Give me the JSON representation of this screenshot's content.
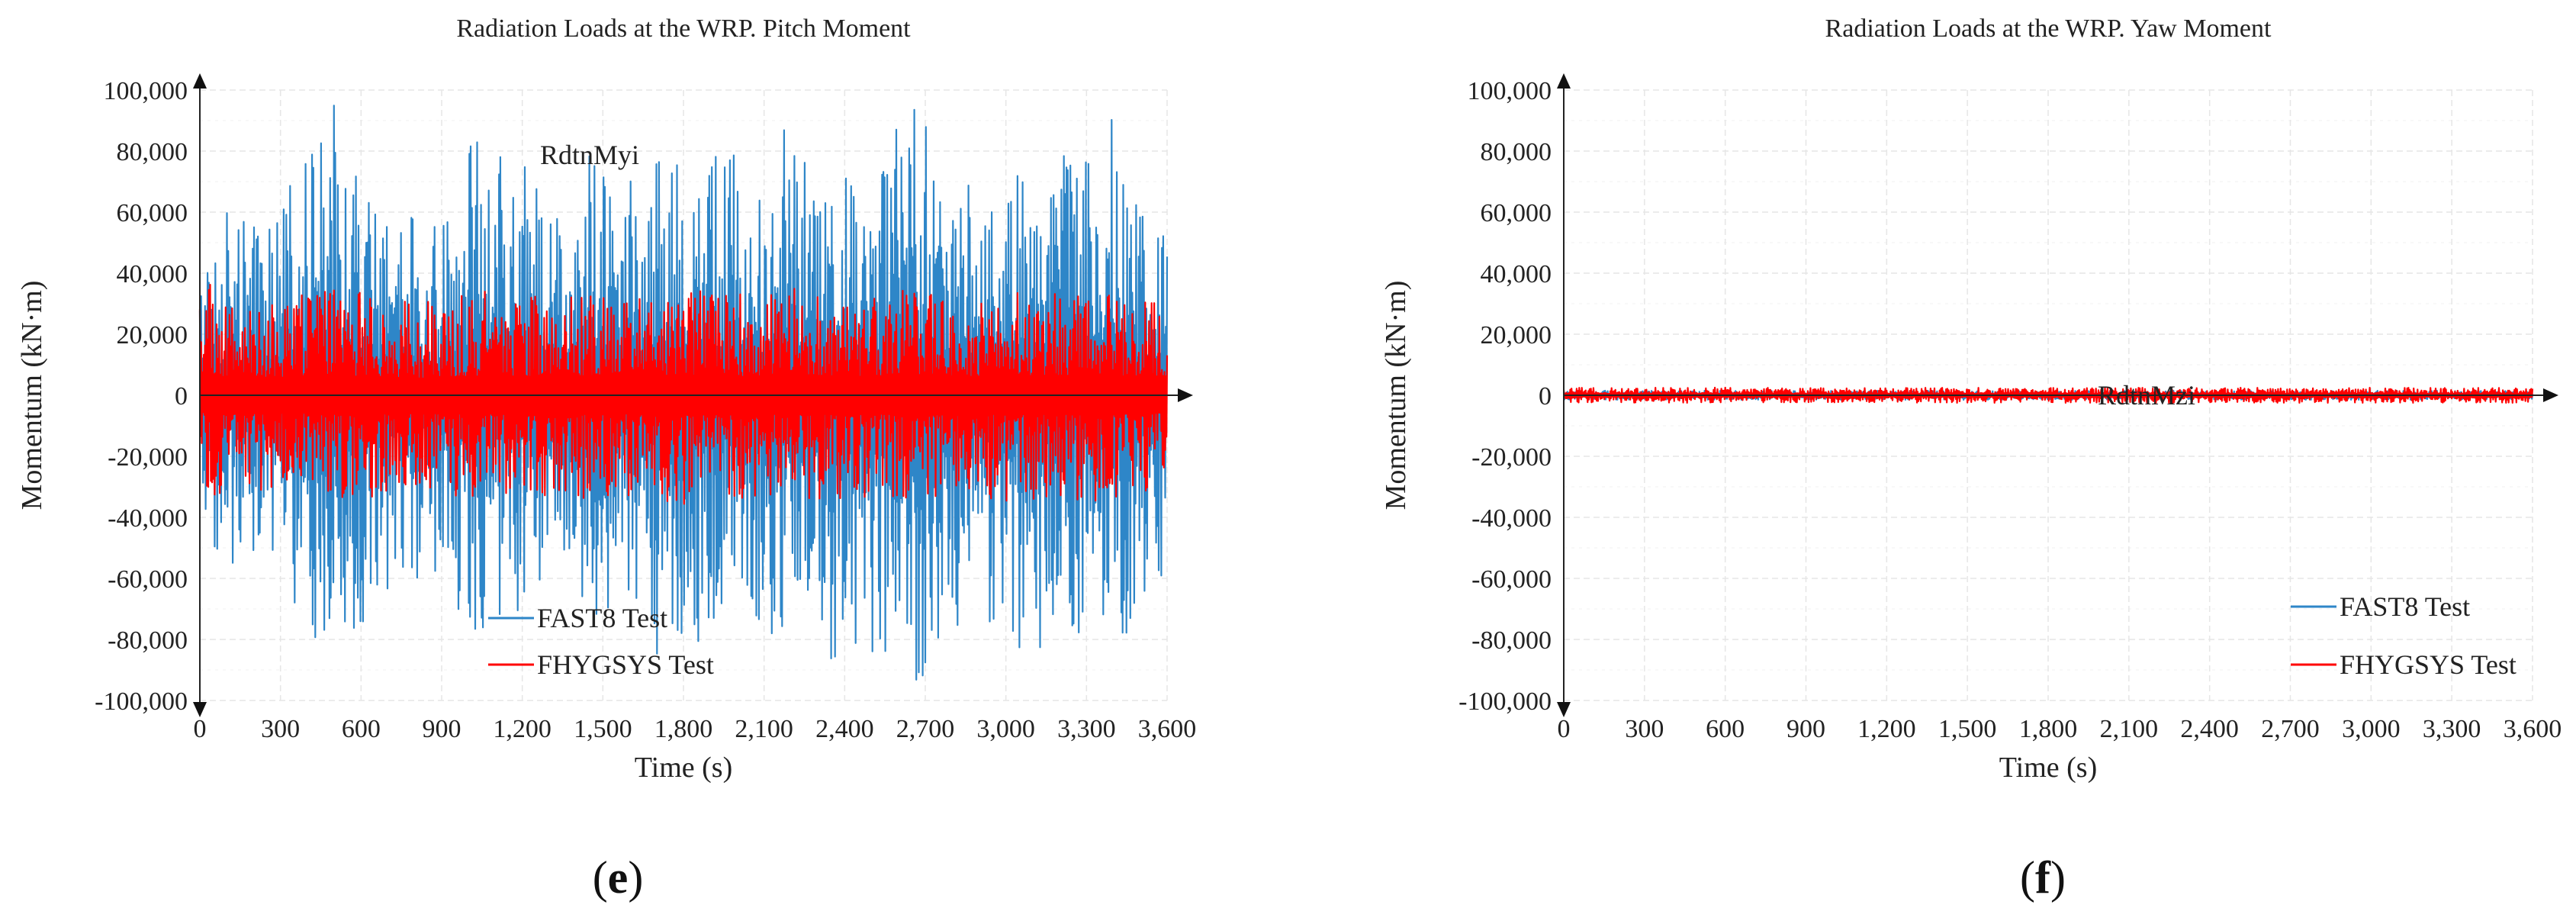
{
  "chart_data": [
    {
      "type": "line",
      "title": "Radiation Loads at the WRP. Pitch Moment",
      "xlabel": "Time (s)",
      "ylabel": "Momentum (kN·m)",
      "xlim": [
        0,
        3600
      ],
      "ylim": [
        -100000,
        100000
      ],
      "x_ticks": [
        0,
        300,
        600,
        900,
        1200,
        1500,
        1800,
        2100,
        2400,
        2700,
        3000,
        3300,
        3600
      ],
      "x_tick_labels": [
        "0",
        "300",
        "600",
        "900",
        "1,200",
        "1,500",
        "1,800",
        "2,100",
        "2,400",
        "2,700",
        "3,000",
        "3,300",
        "3,600"
      ],
      "y_ticks": [
        100000,
        80000,
        60000,
        40000,
        20000,
        0,
        -20000,
        -40000,
        -60000,
        -80000,
        -100000
      ],
      "y_tick_labels": [
        "100,000",
        "80,000",
        "60,000",
        "40,000",
        "20,000",
        "0",
        "-20,000",
        "-40,000",
        "-60,000",
        "-80,000",
        "-100,000"
      ],
      "annotation": "RdtnMyi",
      "grid": true,
      "legend_position": "bottom-left",
      "caption": "e",
      "series": [
        {
          "name": "FAST8 Test",
          "color": "#2e86c8",
          "line_width": 2.2,
          "envelope": {
            "times": [
              0,
              100,
              200,
              300,
              400,
              500,
              600,
              700,
              800,
              900,
              1000,
              1100,
              1200,
              1300,
              1400,
              1500,
              1600,
              1700,
              1800,
              1900,
              2000,
              2100,
              2200,
              2300,
              2400,
              2500,
              2600,
              2700,
              2800,
              2900,
              3000,
              3100,
              3200,
              3300,
              3400,
              3500,
              3600
            ],
            "max": [
              42000,
              60000,
              55000,
              62000,
              85000,
              95000,
              75000,
              60000,
              58000,
              55000,
              90000,
              78000,
              80000,
              60000,
              82000,
              78000,
              70000,
              92000,
              85000,
              90000,
              78000,
              65000,
              98000,
              70000,
              72000,
              75000,
              95000,
              100000,
              72000,
              68000,
              75000,
              70000,
              85000,
              78000,
              100000,
              65000,
              55000
            ],
            "min": [
              -35000,
              -62000,
              -55000,
              -60000,
              -78000,
              -90000,
              -75000,
              -70000,
              -60000,
              -58000,
              -80000,
              -75000,
              -70000,
              -60000,
              -75000,
              -80000,
              -65000,
              -85000,
              -90000,
              -80000,
              -78000,
              -85000,
              -80000,
              -90000,
              -100000,
              -85000,
              -90000,
              -100000,
              -80000,
              -70000,
              -85000,
              -90000,
              -85000,
              -75000,
              -100000,
              -70000,
              -60000
            ]
          }
        },
        {
          "name": "FHYGSYS Test",
          "color": "#ff0000",
          "line_width": 2.2,
          "envelope": {
            "times": [
              0,
              100,
              200,
              300,
              400,
              500,
              600,
              700,
              800,
              900,
              1000,
              1100,
              1200,
              1300,
              1400,
              1500,
              1600,
              1700,
              1800,
              1900,
              2000,
              2100,
              2200,
              2300,
              2400,
              2500,
              2600,
              2700,
              2800,
              2900,
              3000,
              3100,
              3200,
              3300,
              3400,
              3500,
              3600
            ],
            "max": [
              42000,
              32000,
              30000,
              32000,
              33000,
              35000,
              34000,
              32000,
              30000,
              32000,
              34000,
              35000,
              33000,
              34000,
              35000,
              34000,
              35000,
              36000,
              34000,
              35000,
              33000,
              34000,
              36000,
              35000,
              34000,
              33000,
              35000,
              36000,
              34000,
              33000,
              34000,
              35000,
              33000,
              34000,
              35000,
              33000,
              32000
            ],
            "min": [
              -30000,
              -35000,
              -32000,
              -30000,
              -32000,
              -34000,
              -35000,
              -33000,
              -30000,
              -32000,
              -34000,
              -33000,
              -35000,
              -33000,
              -34000,
              -35000,
              -33000,
              -34000,
              -36000,
              -35000,
              -34000,
              -33000,
              -35000,
              -34000,
              -35000,
              -34000,
              -33000,
              -35000,
              -34000,
              -33000,
              -35000,
              -34000,
              -33000,
              -35000,
              -34000,
              -33000,
              -30000
            ]
          }
        }
      ]
    },
    {
      "type": "line",
      "title": "Radiation Loads at the WRP. Yaw Moment",
      "xlabel": "Time (s)",
      "ylabel": "Momentum (kN·m)",
      "xlim": [
        0,
        3600
      ],
      "ylim": [
        -100000,
        100000
      ],
      "x_ticks": [
        0,
        300,
        600,
        900,
        1200,
        1500,
        1800,
        2100,
        2400,
        2700,
        3000,
        3300,
        3600
      ],
      "x_tick_labels": [
        "0",
        "300",
        "600",
        "900",
        "1,200",
        "1,500",
        "1,800",
        "2,100",
        "2,400",
        "2,700",
        "3,000",
        "3,300",
        "3,600"
      ],
      "y_ticks": [
        100000,
        80000,
        60000,
        40000,
        20000,
        0,
        -20000,
        -40000,
        -60000,
        -80000,
        -100000
      ],
      "y_tick_labels": [
        "100,000",
        "80,000",
        "60,000",
        "40,000",
        "20,000",
        "0",
        "-20,000",
        "-40,000",
        "-60,000",
        "-80,000",
        "-100,000"
      ],
      "annotation": "RdtnMzi",
      "grid": true,
      "legend_position": "bottom-right",
      "caption": "f",
      "series": [
        {
          "name": "FAST8 Test",
          "color": "#2e86c8",
          "line_width": 2.2,
          "envelope": {
            "times": [
              0,
              3600
            ],
            "max": [
              1500,
              1500
            ],
            "min": [
              -1500,
              -1500
            ]
          }
        },
        {
          "name": "FHYGSYS Test",
          "color": "#ff0000",
          "line_width": 2.2,
          "envelope": {
            "times": [
              0,
              3600
            ],
            "max": [
              2500,
              2500
            ],
            "min": [
              -2500,
              -2500
            ]
          }
        }
      ]
    }
  ]
}
